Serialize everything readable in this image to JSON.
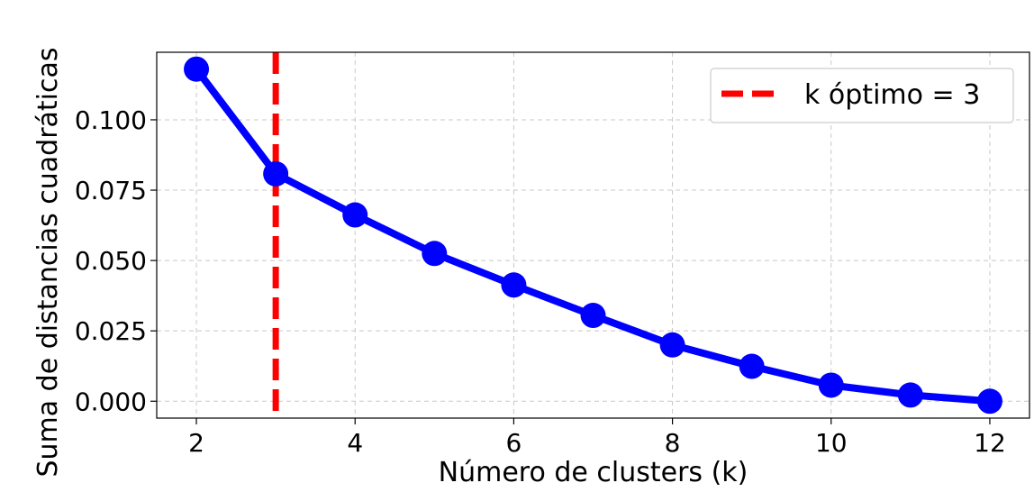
{
  "chart_data": {
    "type": "line",
    "xlabel": "Número de clusters (k)",
    "ylabel": "Suma de distancias cuadráticas",
    "x": [
      2,
      3,
      4,
      5,
      6,
      7,
      8,
      9,
      10,
      11,
      12
    ],
    "series": [
      {
        "values": [
          0.118,
          0.0808,
          0.0662,
          0.0525,
          0.0413,
          0.0305,
          0.02,
          0.0124,
          0.0057,
          0.0022,
          0.0
        ],
        "color": "#0000ff",
        "marker": "circle"
      }
    ],
    "vline": {
      "x": 3,
      "label": "k óptimo = 3",
      "color": "#ff0000",
      "style": "dashed"
    },
    "xlim": [
      1.5,
      12.5
    ],
    "ylim": [
      -0.006,
      0.124
    ],
    "xticks": [
      2,
      4,
      6,
      8,
      10,
      12
    ],
    "xtick_labels": [
      "2",
      "4",
      "6",
      "8",
      "10",
      "12"
    ],
    "yticks": [
      0.0,
      0.025,
      0.05,
      0.075,
      0.1
    ],
    "ytick_labels": [
      "0.000",
      "0.025",
      "0.050",
      "0.075",
      "0.100"
    ],
    "grid": true,
    "legend_position": "top-right",
    "legend_entries": [
      "k óptimo = 3"
    ]
  }
}
